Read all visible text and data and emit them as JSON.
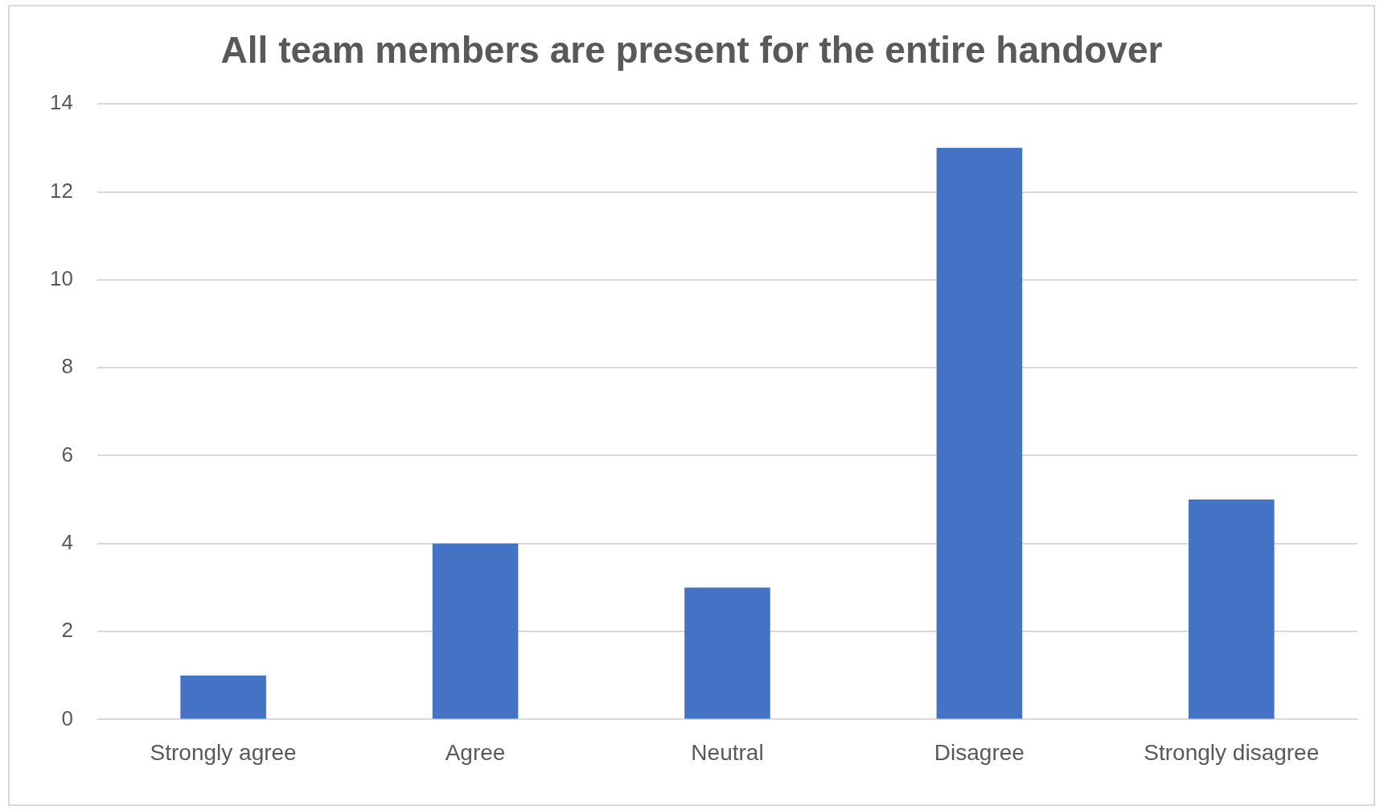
{
  "chart_data": {
    "type": "bar",
    "title": "All team members are present for the entire handover",
    "categories": [
      "Strongly agree",
      "Agree",
      "Neutral",
      "Disagree",
      "Strongly disagree"
    ],
    "values": [
      1,
      4,
      3,
      13,
      5
    ],
    "color": "#4472c4",
    "ylim": [
      0,
      14
    ],
    "yticks": [
      0,
      2,
      4,
      6,
      8,
      10,
      12,
      14
    ],
    "grid": "y",
    "legend": false
  }
}
